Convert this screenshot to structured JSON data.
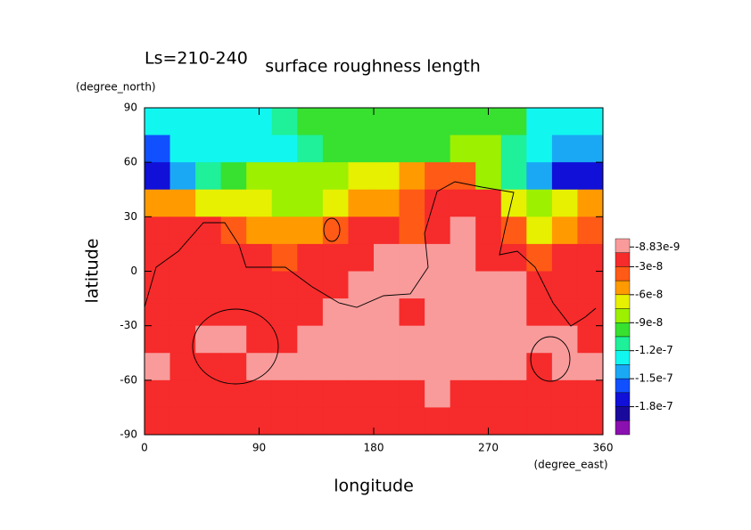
{
  "chart_data": {
    "type": "contour",
    "title": "surface roughness length",
    "annotation": "Ls=210-240",
    "x_label": "longitude",
    "x_unit": "(degree_east)",
    "y_label": "latitude",
    "y_unit": "(degree_north)",
    "xlim": [
      0,
      360
    ],
    "xticks": [
      0,
      90,
      180,
      270,
      360
    ],
    "ylim": [
      -90,
      90
    ],
    "yticks": [
      -90,
      -60,
      -30,
      0,
      30,
      60,
      90
    ],
    "x": [
      10,
      30,
      50,
      70,
      90,
      110,
      130,
      150,
      170,
      190,
      210,
      230,
      250,
      270,
      290,
      310,
      330,
      350
    ],
    "y": [
      82.5,
      67.5,
      52.5,
      37.5,
      22.5,
      7.5,
      -7.5,
      -22.5,
      -37.5,
      -52.5,
      -67.5,
      -82.5
    ],
    "z": [
      [
        -1.27e-07,
        -1.27e-07,
        -1.27e-07,
        -1.27e-07,
        -1.27e-07,
        -1.12e-07,
        -9.7e-08,
        -9.7e-08,
        -9.7e-08,
        -9.7e-08,
        -9.7e-08,
        -9.7e-08,
        -9.7e-08,
        -9.7e-08,
        -9.7e-08,
        -1.27e-07,
        -1.27e-07,
        -1.27e-07
      ],
      [
        -1.57e-07,
        -1.27e-07,
        -1.27e-07,
        -1.27e-07,
        -1.27e-07,
        -1.27e-07,
        -1.12e-07,
        -9.7e-08,
        -9.7e-08,
        -9.7e-08,
        -9.7e-08,
        -9.7e-08,
        -8.2e-08,
        -8.2e-08,
        -1.12e-07,
        -1.27e-07,
        -1.42e-07,
        -1.42e-07
      ],
      [
        -1.72e-07,
        -1.42e-07,
        -1.12e-07,
        -9.7e-08,
        -8.2e-08,
        -8.2e-08,
        -8.2e-08,
        -8.2e-08,
        -6.7e-08,
        -6.7e-08,
        -5.2e-08,
        -3.7e-08,
        -3.7e-08,
        -8.2e-08,
        -1.12e-07,
        -1.42e-07,
        -1.72e-07,
        -1.72e-07
      ],
      [
        -5.2e-08,
        -5.2e-08,
        -6.7e-08,
        -6.7e-08,
        -6.7e-08,
        -8.2e-08,
        -8.2e-08,
        -6.7e-08,
        -5.2e-08,
        -5.2e-08,
        -3.7e-08,
        -2.2e-08,
        -2.2e-08,
        -2.2e-08,
        -6.7e-08,
        -8.2e-08,
        -6.7e-08,
        -5.2e-08
      ],
      [
        -2.2e-08,
        -2.2e-08,
        -2.2e-08,
        -3.7e-08,
        -5.2e-08,
        -5.2e-08,
        -5.2e-08,
        -3.7e-08,
        -2.2e-08,
        -2.2e-08,
        -3.7e-08,
        -2.2e-08,
        -5e-09,
        -2.2e-08,
        -3.7e-08,
        -6.7e-08,
        -5.2e-08,
        -3.7e-08
      ],
      [
        -2.2e-08,
        -2.2e-08,
        -2.2e-08,
        -2.2e-08,
        -2.2e-08,
        -3.7e-08,
        -2.2e-08,
        -2.2e-08,
        -2.2e-08,
        -5e-09,
        -5e-09,
        -5e-09,
        -5e-09,
        -2.2e-08,
        -2.2e-08,
        -3.7e-08,
        -2.2e-08,
        -2.2e-08
      ],
      [
        -2.2e-08,
        -2.2e-08,
        -2.2e-08,
        -2.2e-08,
        -2.2e-08,
        -2.2e-08,
        -2.2e-08,
        -2.2e-08,
        -5e-09,
        -5e-09,
        -5e-09,
        -5e-09,
        -5e-09,
        -5e-09,
        -5e-09,
        -2.2e-08,
        -2.2e-08,
        -2.2e-08
      ],
      [
        -2.2e-08,
        -2.2e-08,
        -2.2e-08,
        -2.2e-08,
        -2.2e-08,
        -2.2e-08,
        -2.2e-08,
        -5e-09,
        -5e-09,
        -5e-09,
        -2.2e-08,
        -5e-09,
        -5e-09,
        -5e-09,
        -5e-09,
        -2.2e-08,
        -2.2e-08,
        -2.2e-08
      ],
      [
        -2.2e-08,
        -2.2e-08,
        -5e-09,
        -5e-09,
        -2.2e-08,
        -2.2e-08,
        -5e-09,
        -5e-09,
        -5e-09,
        -5e-09,
        -5e-09,
        -5e-09,
        -5e-09,
        -5e-09,
        -5e-09,
        -5e-09,
        -5e-09,
        -2.2e-08
      ],
      [
        -5e-09,
        -2.2e-08,
        -2.2e-08,
        -2.2e-08,
        -5e-09,
        -5e-09,
        -5e-09,
        -5e-09,
        -5e-09,
        -5e-09,
        -5e-09,
        -5e-09,
        -5e-09,
        -5e-09,
        -5e-09,
        -2.2e-08,
        -5e-09,
        -5e-09
      ],
      [
        -2.2e-08,
        -2.2e-08,
        -2.2e-08,
        -2.2e-08,
        -2.2e-08,
        -2.2e-08,
        -2.2e-08,
        -2.2e-08,
        -2.2e-08,
        -2.2e-08,
        -2.2e-08,
        -5e-09,
        -2.2e-08,
        -2.2e-08,
        -2.2e-08,
        -2.2e-08,
        -2.2e-08,
        -2.2e-08
      ],
      [
        -2.2e-08,
        -2.2e-08,
        -2.2e-08,
        -2.2e-08,
        -2.2e-08,
        -2.2e-08,
        -2.2e-08,
        -2.2e-08,
        -2.2e-08,
        -2.2e-08,
        -2.2e-08,
        -2.2e-08,
        -2.2e-08,
        -2.2e-08,
        -2.2e-08,
        -2.2e-08,
        -2.2e-08,
        -2.2e-08
      ]
    ],
    "colorbar": {
      "clim": [
        -2.1e-07,
        0
      ],
      "ticks": [
        -8.83e-09,
        -3e-08,
        -6e-08,
        -9e-08,
        -1.2e-07,
        -1.5e-07,
        -1.8e-07
      ],
      "colors": [
        "#f99b9b",
        "#f62b2b",
        "#ff5a16",
        "#ff9a00",
        "#e6f000",
        "#9cf000",
        "#38e030",
        "#1ff09a",
        "#12f6f0",
        "#1aa8f4",
        "#1050ff",
        "#1010d8",
        "#1a0a9c",
        "#8a10b0"
      ]
    }
  }
}
